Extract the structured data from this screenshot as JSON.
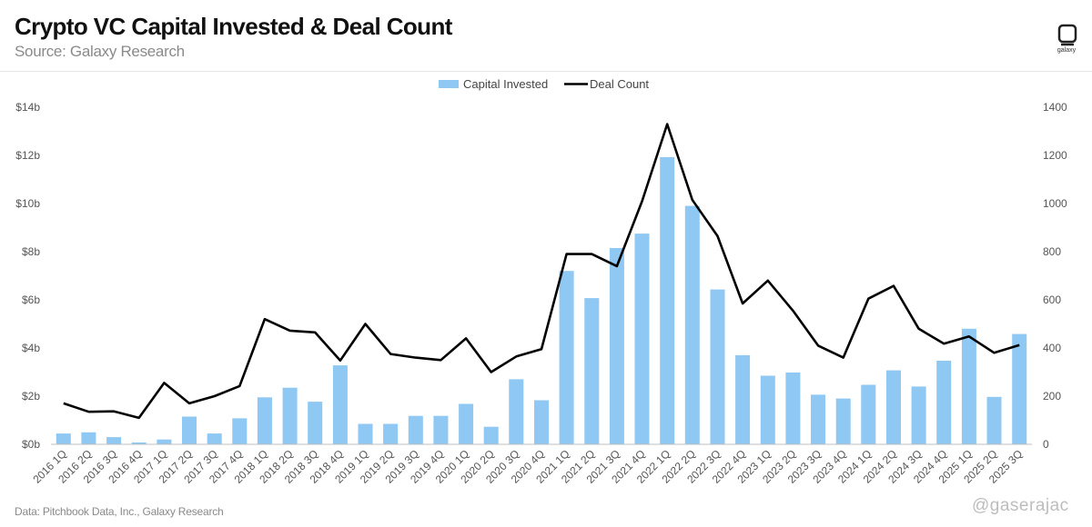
{
  "header": {
    "title": "Crypto VC Capital Invested & Deal Count",
    "subtitle": "Source: Galaxy Research"
  },
  "logo": {
    "icon": "galaxy-logo-icon",
    "text": "galaxy"
  },
  "footer": {
    "note": "Data: Pitchbook Data, Inc., Galaxy Research"
  },
  "watermark": {
    "text": "@gaserajac"
  },
  "chart_data": {
    "type": "bar",
    "title": "Crypto VC Capital Invested & Deal Count",
    "legend_position": "top-center",
    "grid": false,
    "categories": [
      "2016 1Q",
      "2016 2Q",
      "2016 3Q",
      "2016 4Q",
      "2017 1Q",
      "2017 2Q",
      "2017 3Q",
      "2017 4Q",
      "2018 1Q",
      "2018 2Q",
      "2018 3Q",
      "2018 4Q",
      "2019 1Q",
      "2019 2Q",
      "2019 3Q",
      "2019 4Q",
      "2020 1Q",
      "2020 2Q",
      "2020 3Q",
      "2020 4Q",
      "2021 1Q",
      "2021 2Q",
      "2021 3Q",
      "2021 4Q",
      "2022 1Q",
      "2022 2Q",
      "2022 3Q",
      "2022 4Q",
      "2023 1Q",
      "2023 2Q",
      "2023 3Q",
      "2023 4Q",
      "2024 1Q",
      "2024 2Q",
      "2024 3Q",
      "2024 4Q",
      "2025 1Q",
      "2025 2Q",
      "2025 3Q"
    ],
    "series": [
      {
        "name": "Capital Invested",
        "type": "bar",
        "axis": "left",
        "color": "#8ec8f3",
        "values": [
          0.45,
          0.5,
          0.3,
          0.08,
          0.2,
          1.15,
          0.45,
          1.08,
          1.95,
          2.35,
          1.77,
          3.28,
          0.85,
          0.85,
          1.18,
          1.18,
          1.68,
          0.73,
          2.7,
          1.83,
          7.2,
          6.07,
          8.15,
          8.75,
          11.93,
          9.9,
          6.43,
          3.7,
          2.85,
          2.98,
          2.06,
          1.9,
          2.47,
          3.07,
          2.4,
          3.47,
          4.8,
          1.97,
          4.58
        ]
      },
      {
        "name": "Deal Count",
        "type": "line",
        "axis": "right",
        "color": "#000000",
        "values": [
          170,
          135,
          137,
          110,
          255,
          170,
          200,
          242,
          520,
          472,
          465,
          348,
          500,
          375,
          360,
          350,
          440,
          300,
          365,
          395,
          790,
          790,
          740,
          1010,
          1330,
          1015,
          865,
          585,
          680,
          555,
          410,
          360,
          605,
          658,
          480,
          418,
          448,
          380,
          412
        ]
      }
    ],
    "y_left": {
      "min": 0,
      "max": 14,
      "ticks": [
        "$0b",
        "$2b",
        "$4b",
        "$6b",
        "$8b",
        "$10b",
        "$12b",
        "$14b"
      ]
    },
    "y_right": {
      "min": 0,
      "max": 1400,
      "ticks": [
        "0",
        "200",
        "400",
        "600",
        "800",
        "1000",
        "1200",
        "1400"
      ]
    }
  }
}
